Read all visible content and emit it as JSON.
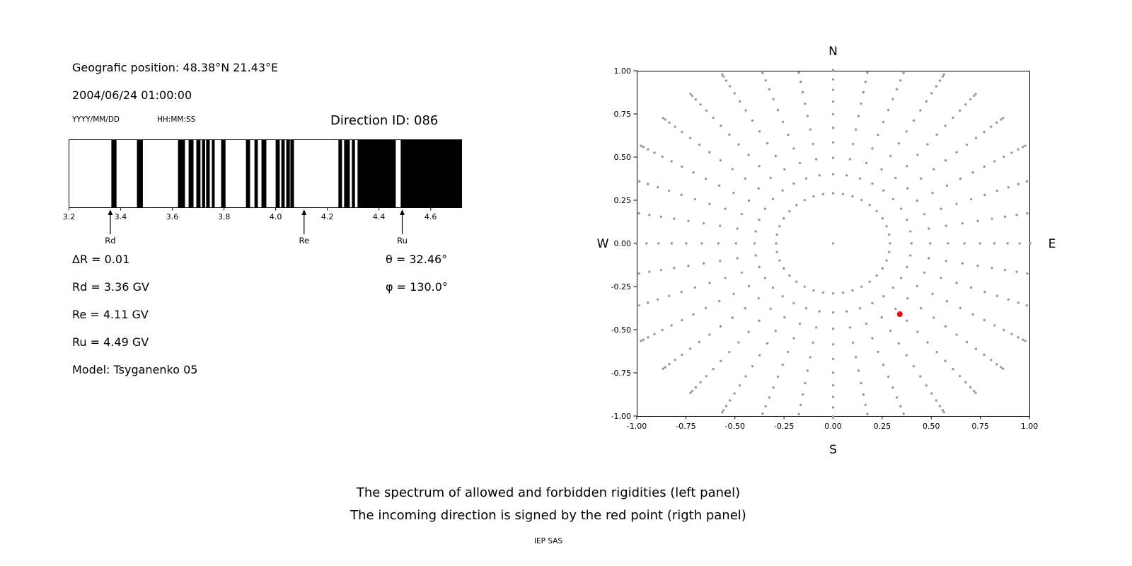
{
  "header": {
    "geo_position": "Geografic position: 48.38°N 21.43°E",
    "datetime": "2004/06/24 01:00:00",
    "date_format_hint": "YYYY/MM/DD",
    "time_format_hint": "HH:MM:SS",
    "direction_id": "Direction ID: 086"
  },
  "left_panel": {
    "delta_r": "ΔR = 0.01",
    "rd": "Rd = 3.36 GV",
    "re": "Re = 4.11 GV",
    "ru": "Ru = 4.49 GV",
    "model": "Model: Tsyganenko 05",
    "theta": "θ = 32.46°",
    "phi": "φ = 130.0°"
  },
  "captions": {
    "line1": "The spectrum of allowed and forbidden rigidities (left panel)",
    "line2": "The incoming direction is signed by the red point (rigth panel)",
    "credit": "IEP SAS"
  },
  "chart_data": [
    {
      "type": "bar",
      "description": "Barcode-style spectrum of allowed (black) and forbidden (white) rigidities",
      "x_range": [
        3.2,
        4.72
      ],
      "x_ticks": [
        3.2,
        3.4,
        3.6,
        3.8,
        4.0,
        4.2,
        4.4,
        4.6
      ],
      "bar_color": "#000000",
      "allowed_bands_gv": [
        [
          3.364,
          3.384
        ],
        [
          3.463,
          3.486
        ],
        [
          3.622,
          3.649
        ],
        [
          3.663,
          3.682
        ],
        [
          3.693,
          3.709
        ],
        [
          3.715,
          3.727
        ],
        [
          3.731,
          3.745
        ],
        [
          3.753,
          3.764
        ],
        [
          3.789,
          3.806
        ],
        [
          3.885,
          3.901
        ],
        [
          3.918,
          3.931
        ],
        [
          3.945,
          3.964
        ],
        [
          4.0,
          4.016
        ],
        [
          4.022,
          4.035
        ],
        [
          4.041,
          4.055
        ],
        [
          4.057,
          4.071
        ],
        [
          4.243,
          4.257
        ],
        [
          4.265,
          4.287
        ],
        [
          4.295,
          4.307
        ],
        [
          4.317,
          4.465
        ],
        [
          4.484,
          4.72
        ]
      ],
      "cutoff_markers": [
        {
          "label": "Rd",
          "value_gv": 3.36
        },
        {
          "label": "Re",
          "value_gv": 4.11
        },
        {
          "label": "Ru",
          "value_gv": 4.49
        }
      ]
    },
    {
      "type": "scatter",
      "description": "Asymptotic directions star pattern; red point marks incoming direction",
      "compass": {
        "top": "N",
        "bottom": "S",
        "left": "W",
        "right": "E"
      },
      "xlim": [
        -1.0,
        1.0
      ],
      "ylim": [
        -1.0,
        1.0
      ],
      "x_ticks": [
        -1.0,
        -0.75,
        -0.5,
        -0.25,
        0.0,
        0.25,
        0.5,
        0.75,
        1.0
      ],
      "y_ticks": [
        -1.0,
        -0.75,
        -0.5,
        -0.25,
        0.0,
        0.25,
        0.5,
        0.75,
        1.0
      ],
      "dot_color": "#999999",
      "rays": {
        "count": 36,
        "angle_step_deg": 10,
        "angle_offset_deg": 0,
        "r_start": 0.4,
        "r_end": 1.13,
        "points_per_ray": 13,
        "tip_density": 1.6
      },
      "inner_ring": {
        "radius": 0.29,
        "points": 36
      },
      "center_dot": {
        "x": 0.0,
        "y": 0.0
      },
      "red_point": {
        "x": 0.34,
        "y": -0.41,
        "color": "#e01010",
        "label": "incoming direction"
      }
    }
  ]
}
